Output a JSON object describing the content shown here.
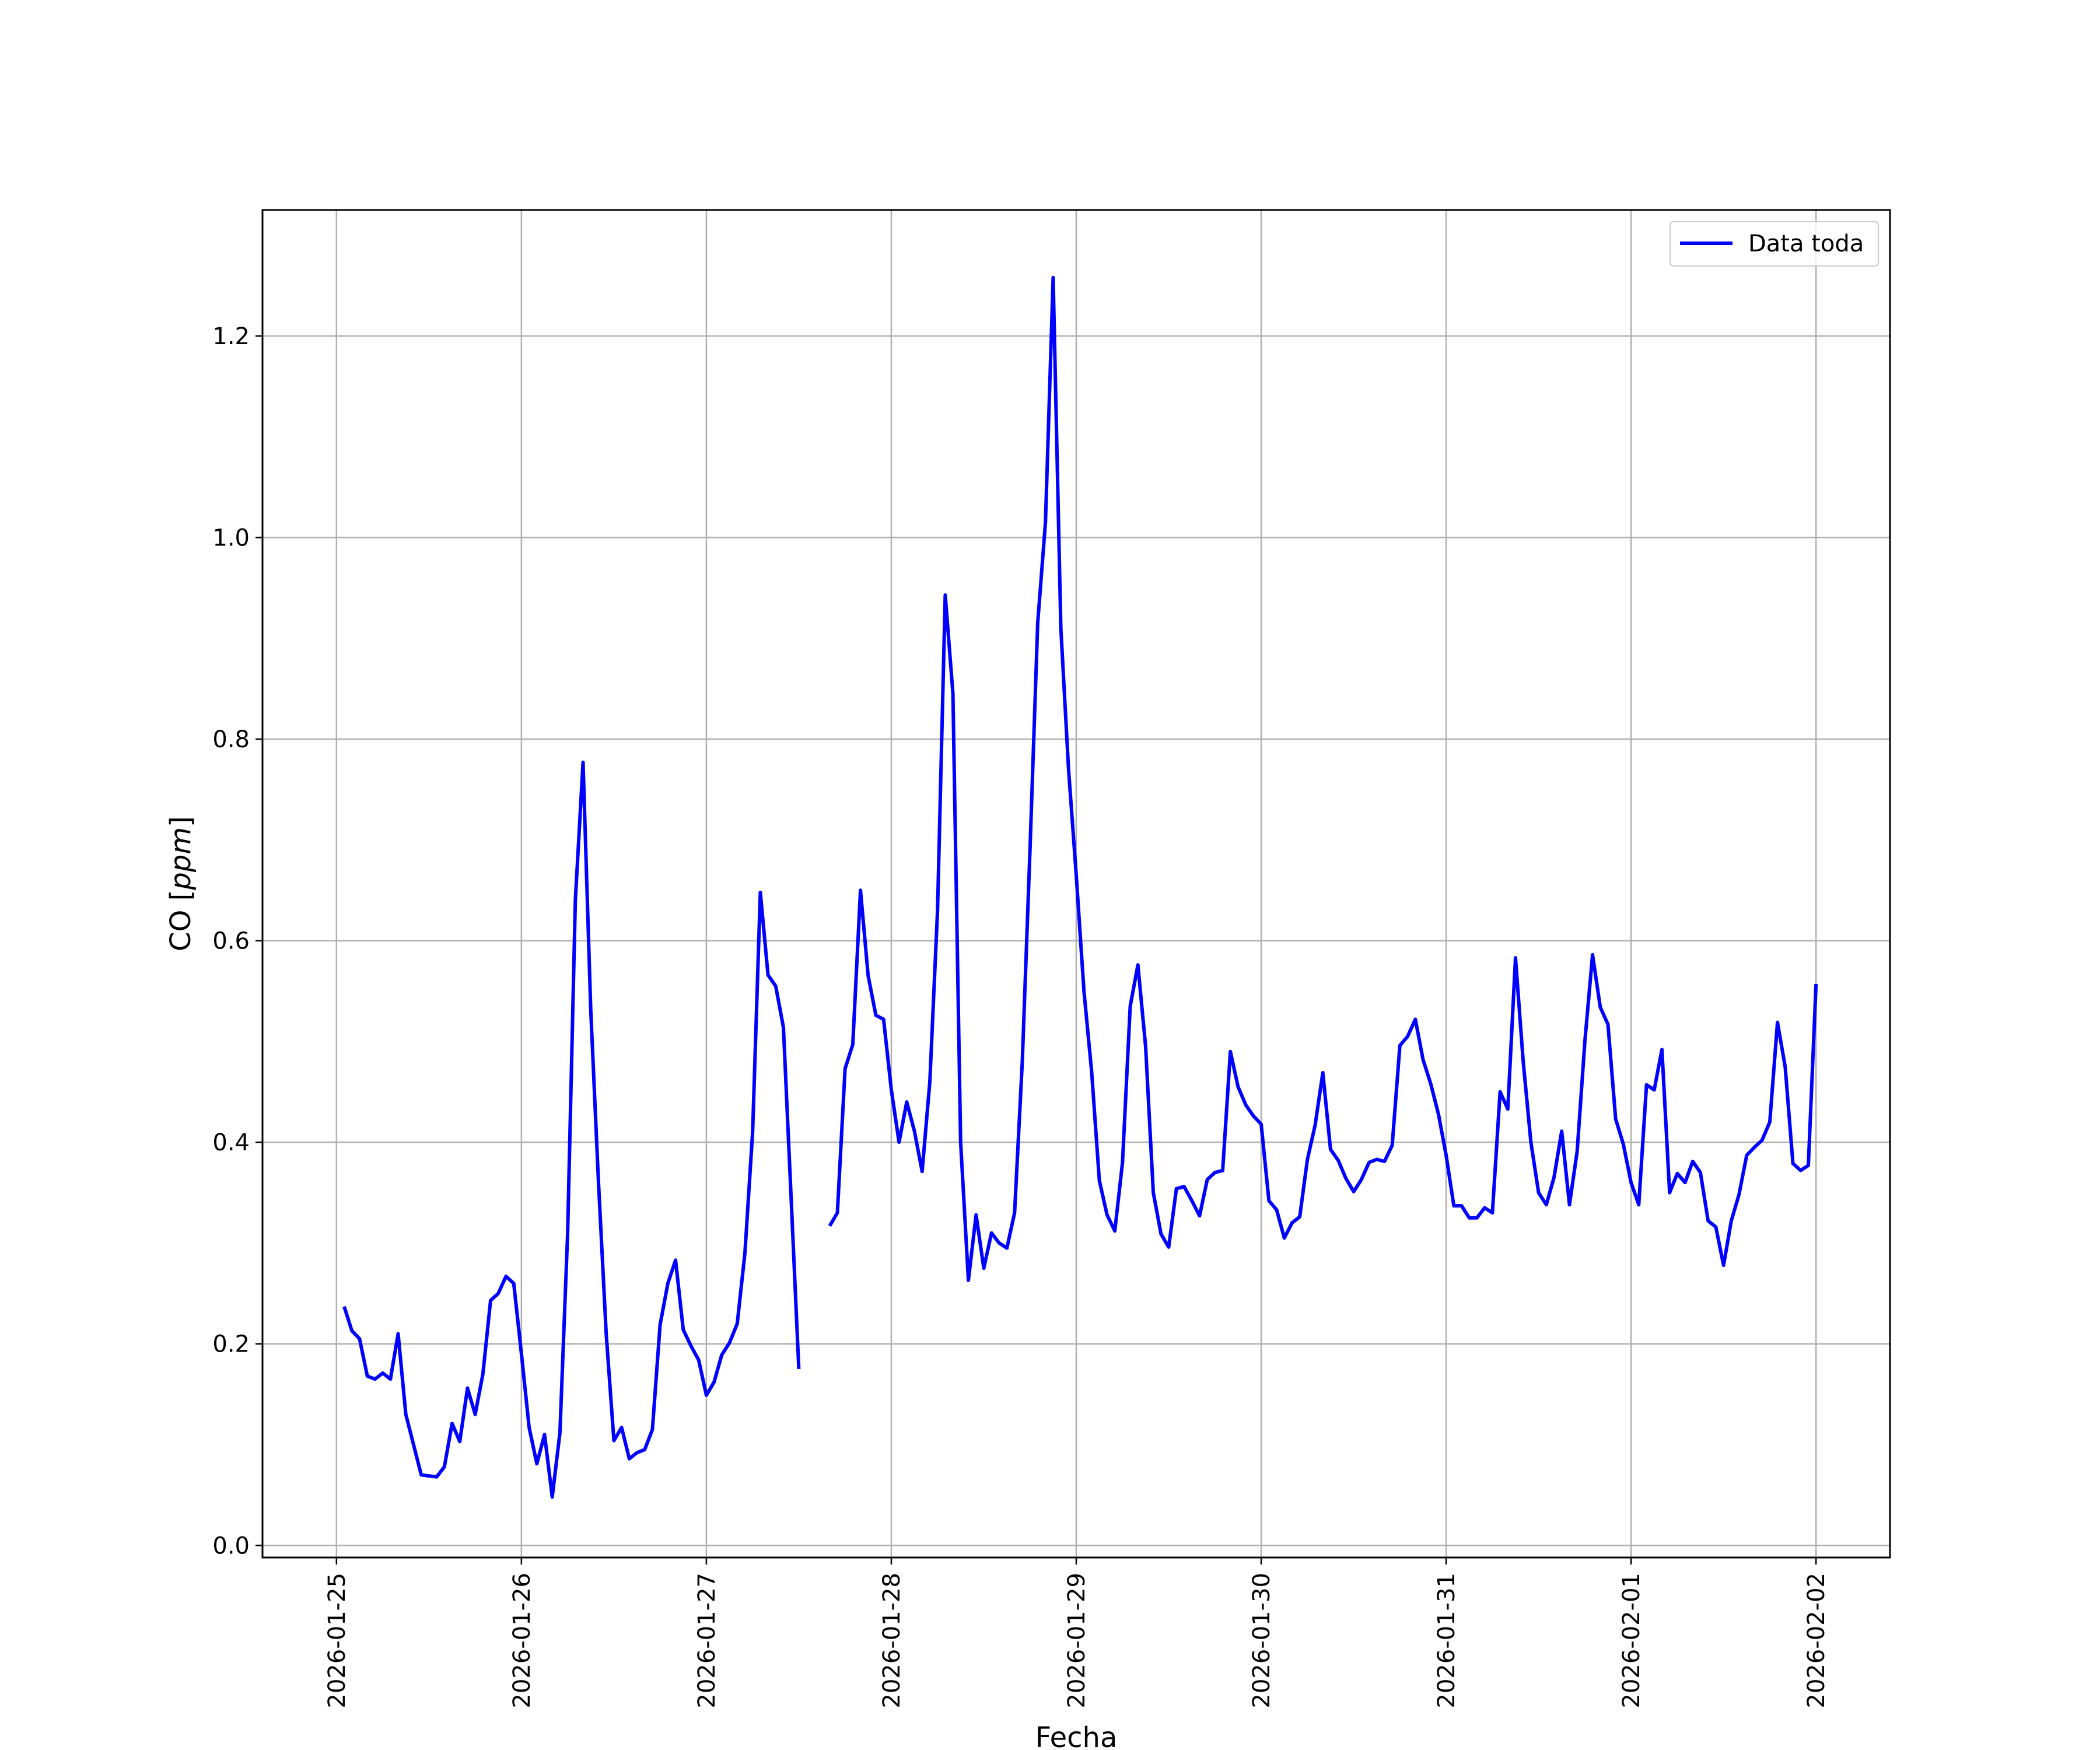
{
  "chart_data": {
    "type": "line",
    "title": "",
    "xlabel": "Fecha",
    "ylabel": "CO [ppm]",
    "ylabel_main": "CO [",
    "ylabel_unit": "ppm",
    "ylabel_close": "]",
    "xlim": [
      "2026-01-24 14:24",
      "2026-02-02 09:36"
    ],
    "ylim": [
      -0.012,
      1.325
    ],
    "x_ticks": [
      "2026-01-25",
      "2026-01-26",
      "2026-01-27",
      "2026-01-28",
      "2026-01-29",
      "2026-01-30",
      "2026-01-31",
      "2026-02-01",
      "2026-02-02"
    ],
    "y_ticks": [
      0.0,
      0.2,
      0.4,
      0.6,
      0.8,
      1.0,
      1.2
    ],
    "y_tick_labels": [
      "0.0",
      "0.2",
      "0.4",
      "0.6",
      "0.8",
      "1.0",
      "1.2"
    ],
    "grid": true,
    "legend_position": "top-right",
    "series": [
      {
        "name": "Data toda",
        "color": "#0000ff",
        "segments": [
          [
            [
              "2026-01-25 01:00",
              0.237
            ],
            [
              "2026-01-25 02:00",
              0.213
            ],
            [
              "2026-01-25 03:00",
              0.205
            ],
            [
              "2026-01-25 04:00",
              0.168
            ],
            [
              "2026-01-25 05:00",
              0.165
            ],
            [
              "2026-01-25 06:00",
              0.171
            ],
            [
              "2026-01-25 07:00",
              0.165
            ],
            [
              "2026-01-25 08:00",
              0.21
            ],
            [
              "2026-01-25 09:00",
              0.13
            ],
            [
              "2026-01-25 10:00",
              0.1
            ],
            [
              "2026-01-25 11:00",
              0.07
            ],
            [
              "2026-01-25 12:00",
              0.069
            ],
            [
              "2026-01-25 13:00",
              0.068
            ],
            [
              "2026-01-25 14:00",
              0.078
            ],
            [
              "2026-01-25 15:00",
              0.121
            ],
            [
              "2026-01-25 16:00",
              0.103
            ],
            [
              "2026-01-25 17:00",
              0.156
            ],
            [
              "2026-01-25 18:00",
              0.13
            ],
            [
              "2026-01-25 19:00",
              0.17
            ],
            [
              "2026-01-25 20:00",
              0.243
            ],
            [
              "2026-01-25 21:00",
              0.25
            ],
            [
              "2026-01-25 22:00",
              0.267
            ],
            [
              "2026-01-25 23:00",
              0.26
            ],
            [
              "2026-01-26 00:00",
              0.19
            ],
            [
              "2026-01-26 01:00",
              0.117
            ],
            [
              "2026-01-26 02:00",
              0.081
            ],
            [
              "2026-01-26 03:00",
              0.11
            ],
            [
              "2026-01-26 04:00",
              0.048
            ],
            [
              "2026-01-26 05:00",
              0.112
            ],
            [
              "2026-01-26 06:00",
              0.31
            ],
            [
              "2026-01-26 07:00",
              0.64
            ],
            [
              "2026-01-26 08:00",
              0.777
            ],
            [
              "2026-01-26 09:00",
              0.53
            ],
            [
              "2026-01-26 10:00",
              0.36
            ],
            [
              "2026-01-26 11:00",
              0.21
            ],
            [
              "2026-01-26 12:00",
              0.104
            ],
            [
              "2026-01-26 13:00",
              0.117
            ],
            [
              "2026-01-26 14:00",
              0.086
            ],
            [
              "2026-01-26 15:00",
              0.092
            ],
            [
              "2026-01-26 16:00",
              0.095
            ],
            [
              "2026-01-26 17:00",
              0.115
            ],
            [
              "2026-01-26 18:00",
              0.219
            ],
            [
              "2026-01-26 19:00",
              0.26
            ],
            [
              "2026-01-26 20:00",
              0.283
            ],
            [
              "2026-01-26 21:00",
              0.214
            ],
            [
              "2026-01-26 22:00",
              0.198
            ],
            [
              "2026-01-26 23:00",
              0.184
            ],
            [
              "2026-01-27 00:00",
              0.149
            ],
            [
              "2026-01-27 01:00",
              0.162
            ],
            [
              "2026-01-27 02:00",
              0.189
            ],
            [
              "2026-01-27 03:00",
              0.201
            ],
            [
              "2026-01-27 04:00",
              0.22
            ],
            [
              "2026-01-27 05:00",
              0.29
            ],
            [
              "2026-01-27 06:00",
              0.41
            ],
            [
              "2026-01-27 07:00",
              0.648
            ],
            [
              "2026-01-27 08:00",
              0.566
            ],
            [
              "2026-01-27 09:00",
              0.555
            ],
            [
              "2026-01-27 10:00",
              0.514
            ],
            [
              "2026-01-27 11:00",
              0.345
            ],
            [
              "2026-01-27 12:00",
              0.175
            ]
          ],
          [
            [
              "2026-01-27 16:00",
              0.317
            ],
            [
              "2026-01-27 17:00",
              0.33
            ],
            [
              "2026-01-27 18:00",
              0.473
            ],
            [
              "2026-01-27 19:00",
              0.497
            ],
            [
              "2026-01-27 20:00",
              0.65
            ],
            [
              "2026-01-27 21:00",
              0.565
            ],
            [
              "2026-01-27 22:00",
              0.526
            ],
            [
              "2026-01-27 23:00",
              0.522
            ],
            [
              "2026-01-28 00:00",
              0.452
            ],
            [
              "2026-01-28 01:00",
              0.4
            ],
            [
              "2026-01-28 02:00",
              0.44
            ],
            [
              "2026-01-28 03:00",
              0.411
            ],
            [
              "2026-01-28 04:00",
              0.371
            ],
            [
              "2026-01-28 05:00",
              0.46
            ],
            [
              "2026-01-28 06:00",
              0.63
            ],
            [
              "2026-01-28 07:00",
              0.943
            ],
            [
              "2026-01-28 08:00",
              0.845
            ],
            [
              "2026-01-28 09:00",
              0.4
            ],
            [
              "2026-01-28 10:00",
              0.263
            ],
            [
              "2026-01-28 11:00",
              0.328
            ],
            [
              "2026-01-28 12:00",
              0.275
            ],
            [
              "2026-01-28 13:00",
              0.31
            ],
            [
              "2026-01-28 14:00",
              0.3
            ],
            [
              "2026-01-28 15:00",
              0.295
            ],
            [
              "2026-01-28 16:00",
              0.33
            ],
            [
              "2026-01-28 17:00",
              0.48
            ],
            [
              "2026-01-28 18:00",
              0.69
            ],
            [
              "2026-01-28 19:00",
              0.915
            ],
            [
              "2026-01-28 20:00",
              1.015
            ],
            [
              "2026-01-28 21:00",
              1.258
            ],
            [
              "2026-01-28 22:00",
              0.91
            ],
            [
              "2026-01-28 23:00",
              0.77
            ],
            [
              "2026-01-29 00:00",
              0.665
            ],
            [
              "2026-01-29 01:00",
              0.55
            ],
            [
              "2026-01-29 02:00",
              0.47
            ],
            [
              "2026-01-29 03:00",
              0.362
            ],
            [
              "2026-01-29 04:00",
              0.328
            ],
            [
              "2026-01-29 05:00",
              0.312
            ],
            [
              "2026-01-29 06:00",
              0.38
            ],
            [
              "2026-01-29 07:00",
              0.535
            ],
            [
              "2026-01-29 08:00",
              0.576
            ],
            [
              "2026-01-29 09:00",
              0.495
            ],
            [
              "2026-01-29 10:00",
              0.35
            ],
            [
              "2026-01-29 11:00",
              0.309
            ],
            [
              "2026-01-29 12:00",
              0.296
            ],
            [
              "2026-01-29 13:00",
              0.354
            ],
            [
              "2026-01-29 14:00",
              0.356
            ],
            [
              "2026-01-29 15:00",
              0.342
            ],
            [
              "2026-01-29 16:00",
              0.327
            ],
            [
              "2026-01-29 17:00",
              0.363
            ],
            [
              "2026-01-29 18:00",
              0.37
            ],
            [
              "2026-01-29 19:00",
              0.372
            ],
            [
              "2026-01-29 20:00",
              0.49
            ],
            [
              "2026-01-29 21:00",
              0.455
            ],
            [
              "2026-01-29 22:00",
              0.437
            ],
            [
              "2026-01-29 23:00",
              0.426
            ],
            [
              "2026-01-30 00:00",
              0.418
            ],
            [
              "2026-01-30 01:00",
              0.342
            ],
            [
              "2026-01-30 02:00",
              0.333
            ],
            [
              "2026-01-30 03:00",
              0.305
            ],
            [
              "2026-01-30 04:00",
              0.32
            ],
            [
              "2026-01-30 05:00",
              0.326
            ],
            [
              "2026-01-30 06:00",
              0.383
            ],
            [
              "2026-01-30 07:00",
              0.417
            ],
            [
              "2026-01-30 08:00",
              0.469
            ],
            [
              "2026-01-30 09:00",
              0.393
            ],
            [
              "2026-01-30 10:00",
              0.382
            ],
            [
              "2026-01-30 11:00",
              0.364
            ],
            [
              "2026-01-30 12:00",
              0.351
            ],
            [
              "2026-01-30 13:00",
              0.363
            ],
            [
              "2026-01-30 14:00",
              0.38
            ],
            [
              "2026-01-30 15:00",
              0.383
            ],
            [
              "2026-01-30 16:00",
              0.381
            ],
            [
              "2026-01-30 17:00",
              0.397
            ],
            [
              "2026-01-30 18:00",
              0.496
            ],
            [
              "2026-01-30 19:00",
              0.505
            ],
            [
              "2026-01-30 20:00",
              0.522
            ],
            [
              "2026-01-30 21:00",
              0.482
            ],
            [
              "2026-01-30 22:00",
              0.458
            ],
            [
              "2026-01-30 23:00",
              0.428
            ],
            [
              "2026-01-31 00:00",
              0.387
            ],
            [
              "2026-01-31 01:00",
              0.337
            ],
            [
              "2026-01-31 02:00",
              0.337
            ],
            [
              "2026-01-31 03:00",
              0.325
            ],
            [
              "2026-01-31 04:00",
              0.325
            ],
            [
              "2026-01-31 05:00",
              0.335
            ],
            [
              "2026-01-31 06:00",
              0.33
            ],
            [
              "2026-01-31 07:00",
              0.45
            ],
            [
              "2026-01-31 08:00",
              0.433
            ],
            [
              "2026-01-31 09:00",
              0.583
            ],
            [
              "2026-01-31 10:00",
              0.48
            ],
            [
              "2026-01-31 11:00",
              0.4
            ],
            [
              "2026-01-31 12:00",
              0.35
            ],
            [
              "2026-01-31 13:00",
              0.338
            ],
            [
              "2026-01-31 14:00",
              0.365
            ],
            [
              "2026-01-31 15:00",
              0.411
            ],
            [
              "2026-01-31 16:00",
              0.338
            ],
            [
              "2026-01-31 17:00",
              0.391
            ],
            [
              "2026-01-31 18:00",
              0.5
            ],
            [
              "2026-01-31 19:00",
              0.586
            ],
            [
              "2026-01-31 20:00",
              0.534
            ],
            [
              "2026-01-31 21:00",
              0.517
            ],
            [
              "2026-01-31 22:00",
              0.423
            ],
            [
              "2026-01-31 23:00",
              0.398
            ],
            [
              "2026-02-01 00:00",
              0.36
            ],
            [
              "2026-02-01 01:00",
              0.338
            ],
            [
              "2026-02-01 02:00",
              0.457
            ],
            [
              "2026-02-01 03:00",
              0.452
            ],
            [
              "2026-02-01 04:00",
              0.492
            ],
            [
              "2026-02-01 05:00",
              0.35
            ],
            [
              "2026-02-01 06:00",
              0.369
            ],
            [
              "2026-02-01 07:00",
              0.36
            ],
            [
              "2026-02-01 08:00",
              0.381
            ],
            [
              "2026-02-01 09:00",
              0.37
            ],
            [
              "2026-02-01 10:00",
              0.322
            ],
            [
              "2026-02-01 11:00",
              0.316
            ],
            [
              "2026-02-01 12:00",
              0.278
            ],
            [
              "2026-02-01 13:00",
              0.322
            ],
            [
              "2026-02-01 14:00",
              0.348
            ],
            [
              "2026-02-01 15:00",
              0.387
            ],
            [
              "2026-02-01 16:00",
              0.395
            ],
            [
              "2026-02-01 17:00",
              0.402
            ],
            [
              "2026-02-01 18:00",
              0.42
            ],
            [
              "2026-02-01 19:00",
              0.519
            ],
            [
              "2026-02-01 20:00",
              0.475
            ],
            [
              "2026-02-01 21:00",
              0.379
            ],
            [
              "2026-02-01 22:00",
              0.372
            ],
            [
              "2026-02-01 23:00",
              0.377
            ],
            [
              "2026-02-02 00:00",
              0.557
            ]
          ]
        ]
      }
    ]
  }
}
